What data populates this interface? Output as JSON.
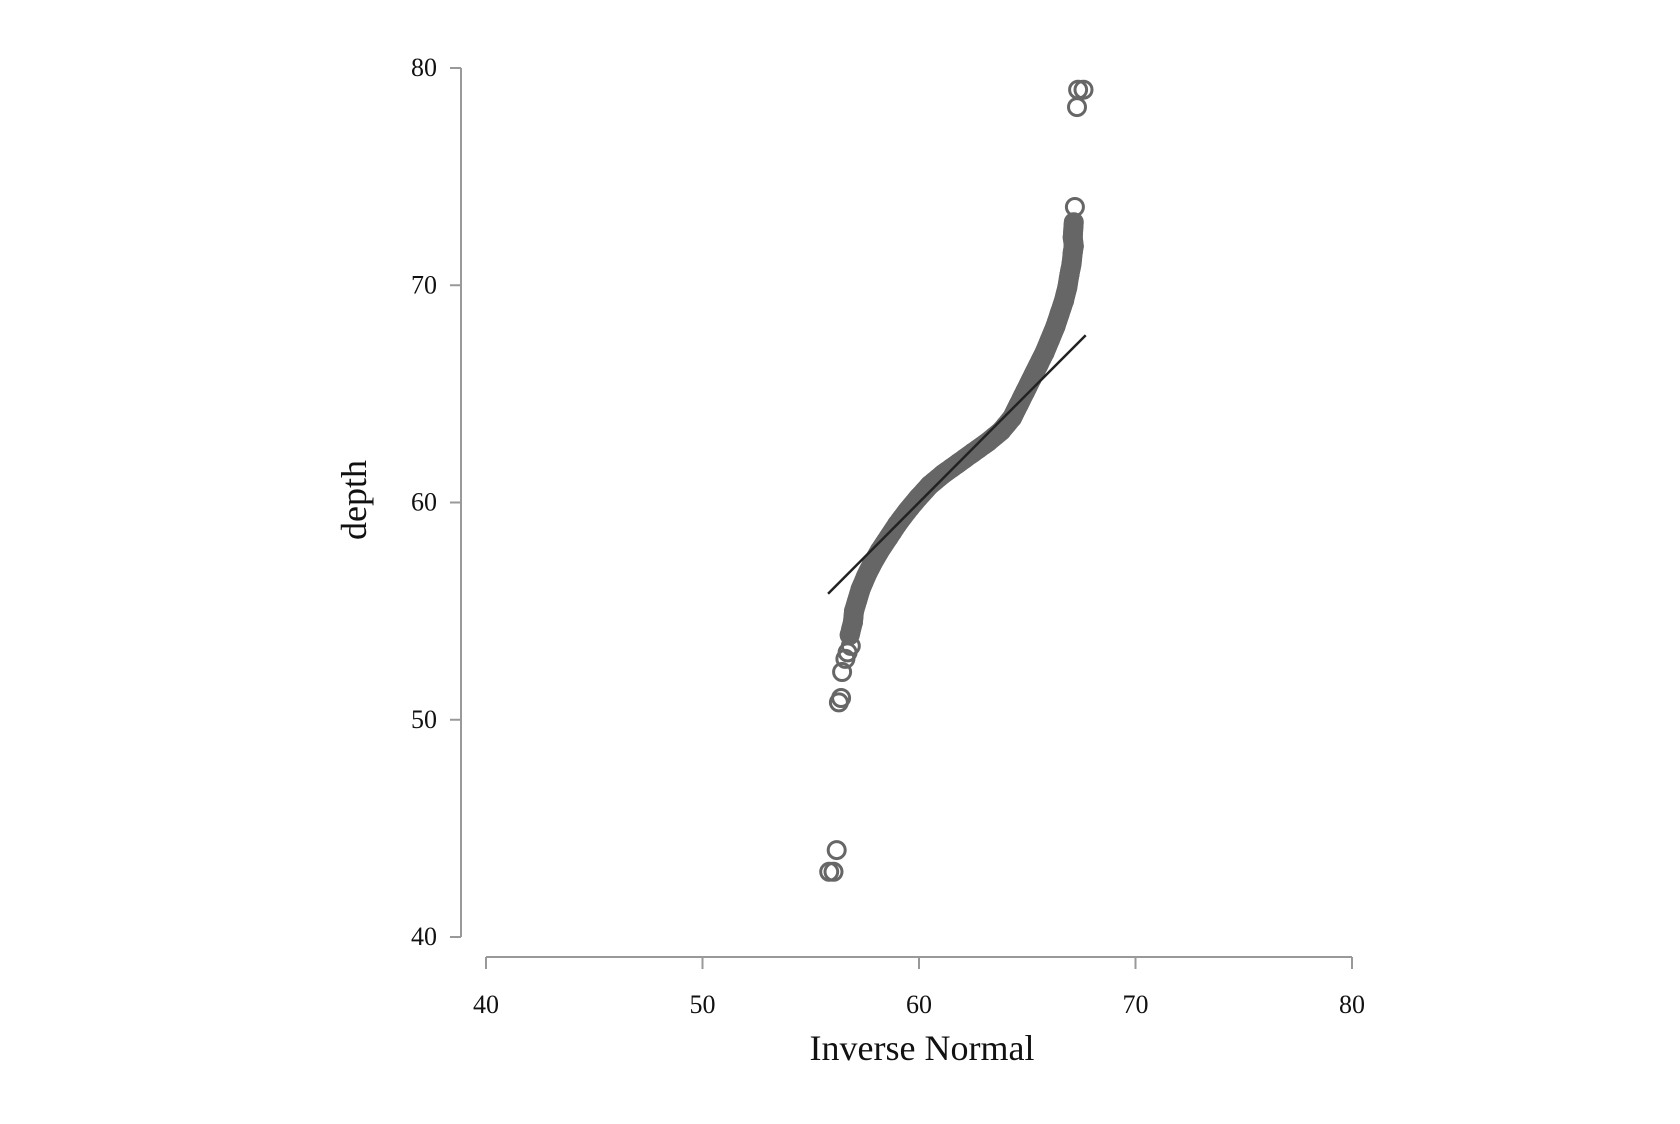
{
  "chart_data": {
    "type": "scatter",
    "title": "",
    "xlabel": "Inverse Normal",
    "ylabel": "depth",
    "xlim": [
      40,
      80
    ],
    "ylim": [
      40,
      80
    ],
    "x_ticks": [
      "40",
      "50",
      "60",
      "70",
      "80"
    ],
    "y_ticks": [
      "40",
      "50",
      "60",
      "70",
      "80"
    ],
    "grid": false,
    "legend": "none",
    "colors": {
      "points": "#666666",
      "line": "#222222",
      "axis": "#999999"
    },
    "reference_line": {
      "x": [
        55.8,
        67.7
      ],
      "y": [
        55.8,
        67.7
      ]
    },
    "series": [
      {
        "values": [
          [
            55.85,
            43.0
          ],
          [
            56.05,
            43.0
          ],
          [
            56.2,
            44.0
          ],
          [
            56.3,
            50.8
          ],
          [
            56.4,
            51.0
          ],
          [
            56.45,
            52.2
          ],
          [
            56.6,
            52.8
          ],
          [
            56.7,
            53.1
          ],
          [
            56.85,
            53.4
          ],
          [
            56.8,
            53.9
          ],
          [
            56.95,
            54.5
          ],
          [
            57.0,
            55.0
          ],
          [
            57.15,
            55.5
          ],
          [
            57.3,
            56.0
          ],
          [
            57.55,
            56.6
          ],
          [
            57.85,
            57.2
          ],
          [
            58.2,
            57.8
          ],
          [
            58.6,
            58.4
          ],
          [
            59.0,
            59.0
          ],
          [
            59.45,
            59.6
          ],
          [
            59.95,
            60.2
          ],
          [
            60.5,
            60.8
          ],
          [
            61.1,
            61.3
          ],
          [
            61.8,
            61.8
          ],
          [
            62.5,
            62.3
          ],
          [
            63.2,
            62.8
          ],
          [
            63.8,
            63.3
          ],
          [
            64.3,
            63.9
          ],
          [
            64.6,
            64.5
          ],
          [
            64.9,
            65.1
          ],
          [
            65.2,
            65.7
          ],
          [
            65.5,
            66.3
          ],
          [
            65.8,
            66.9
          ],
          [
            66.05,
            67.5
          ],
          [
            66.3,
            68.1
          ],
          [
            66.5,
            68.7
          ],
          [
            66.7,
            69.3
          ],
          [
            66.85,
            69.9
          ],
          [
            66.95,
            70.5
          ],
          [
            67.05,
            71.0
          ],
          [
            67.1,
            71.5
          ],
          [
            67.15,
            71.8
          ],
          [
            67.1,
            72.2
          ],
          [
            67.15,
            72.9
          ],
          [
            67.2,
            73.6
          ],
          [
            67.3,
            78.2
          ],
          [
            67.35,
            79.0
          ],
          [
            67.6,
            79.0
          ]
        ]
      }
    ]
  }
}
